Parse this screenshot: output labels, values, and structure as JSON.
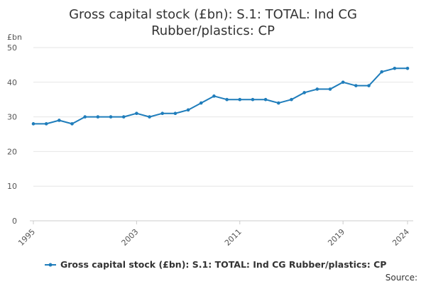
{
  "chart_data": {
    "type": "line",
    "title_lines": [
      "Gross capital stock (£bn): S.1: TOTAL: Ind CG",
      "Rubber/plastics: CP"
    ],
    "y_unit": "£bn",
    "xlim": [
      1995,
      2024
    ],
    "ylim": [
      0,
      50
    ],
    "y_ticks": [
      0,
      10,
      20,
      30,
      40,
      50
    ],
    "x_ticks": [
      1995,
      2003,
      2011,
      2019,
      2024
    ],
    "grid": "horizontal",
    "legend_position": "bottom",
    "source_label": "Source:",
    "series": [
      {
        "name": "Gross capital stock (£bn): S.1: TOTAL: Ind CG Rubber/plastics: CP",
        "color": "#1f7dbb",
        "x": [
          1995,
          1996,
          1997,
          1998,
          1999,
          2000,
          2001,
          2002,
          2003,
          2004,
          2005,
          2006,
          2007,
          2008,
          2009,
          2010,
          2011,
          2012,
          2013,
          2014,
          2015,
          2016,
          2017,
          2018,
          2019,
          2020,
          2021,
          2022,
          2023,
          2024
        ],
        "values": [
          28,
          28,
          29,
          28,
          30,
          30,
          30,
          30,
          31,
          30,
          31,
          31,
          32,
          34,
          36,
          35,
          35,
          35,
          35,
          34,
          35,
          37,
          38,
          38,
          40,
          39,
          39,
          43,
          44,
          44
        ]
      }
    ]
  }
}
